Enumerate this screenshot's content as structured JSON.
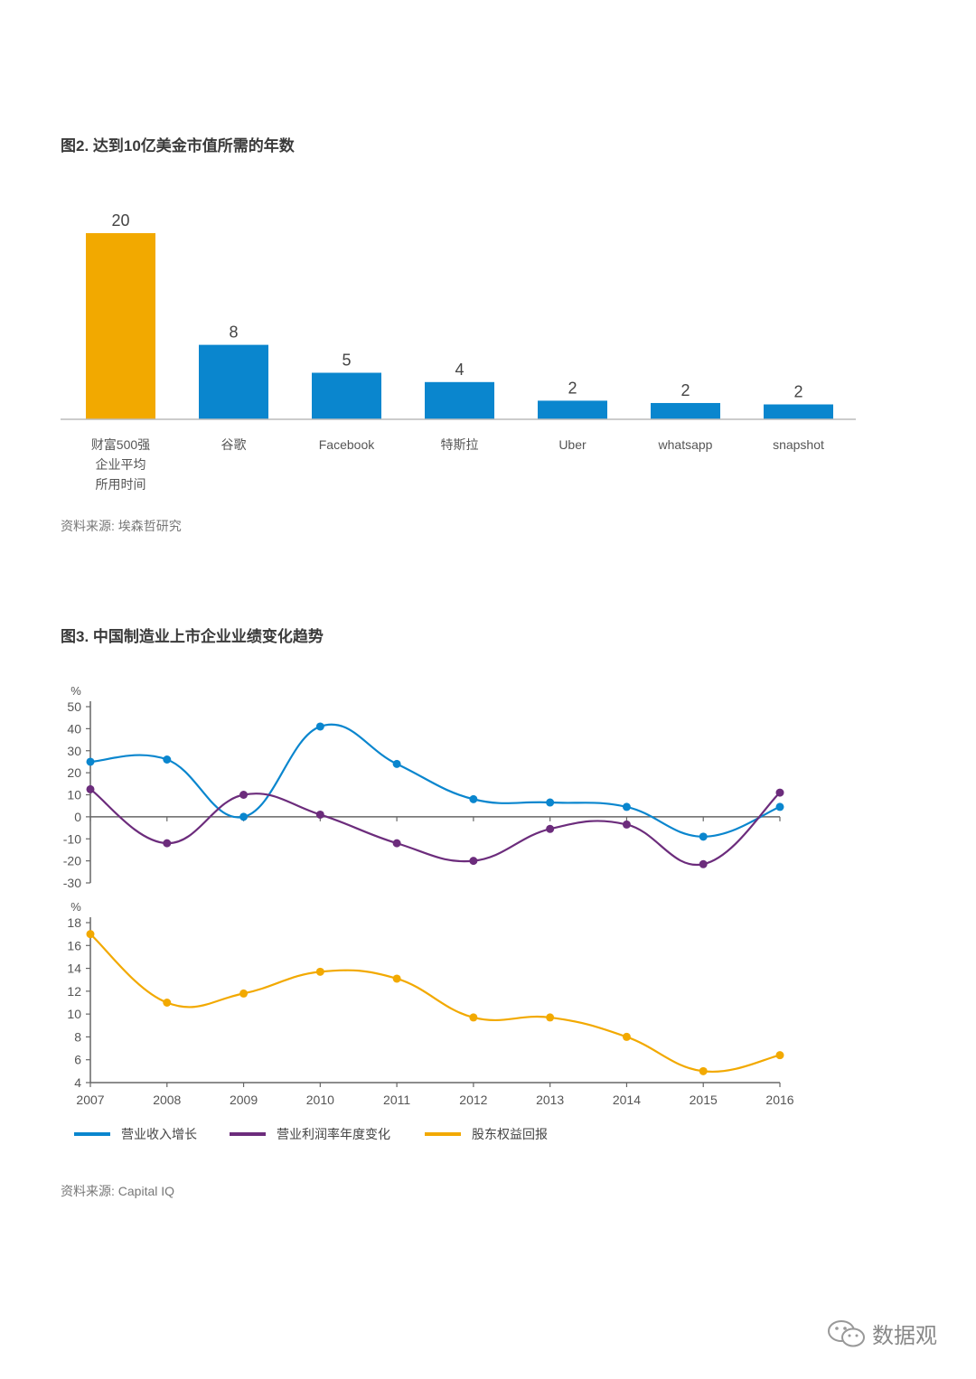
{
  "fig2": {
    "title": "图2. 达到10亿美金市值所需的年数",
    "source": "资料来源: 埃森哲研究"
  },
  "fig3": {
    "title": "图3. 中国制造业上市企业业绩变化趋势",
    "source": "资料来源: Capital IQ"
  },
  "watermark": {
    "text": "数据观",
    "icon": "wechat-icon"
  },
  "colors": {
    "orange": "#F2A900",
    "blue": "#0A86CE",
    "purple": "#6C2C7C",
    "axis": "#666666"
  },
  "chart_data": [
    {
      "type": "bar",
      "title": "图2. 达到10亿美金市值所需的年数",
      "categories": [
        [
          "财富500强",
          "企业平均",
          "所用时间"
        ],
        [
          "谷歌"
        ],
        [
          "Facebook"
        ],
        [
          "特斯拉"
        ],
        [
          "Uber"
        ],
        [
          "whatsapp"
        ],
        [
          "snapshot"
        ]
      ],
      "values": [
        20,
        8,
        5,
        4,
        2,
        2,
        2
      ],
      "bar_colors": [
        "#F2A900",
        "#0A86CE",
        "#0A86CE",
        "#0A86CE",
        "#0A86CE",
        "#0A86CE",
        "#0A86CE"
      ],
      "value_labels": [
        "20",
        "8",
        "5",
        "4",
        "2",
        "2",
        "2"
      ],
      "displayed_heights": [
        20,
        8,
        5,
        4,
        2,
        1.75,
        1.6
      ],
      "ylim": [
        0,
        20
      ],
      "grid": false
    },
    {
      "type": "line",
      "title": "图3. 中国制造业上市企业业绩变化趋势",
      "x": [
        "2007",
        "2008",
        "2009",
        "2010",
        "2011",
        "2012",
        "2013",
        "2014",
        "2015",
        "2016"
      ],
      "panels": [
        {
          "ylabel": "%",
          "ylim": [
            -30,
            50
          ],
          "yticks": [
            50,
            40,
            30,
            20,
            10,
            0,
            -10,
            -20,
            -30
          ],
          "series": [
            {
              "name": "营业收入增长",
              "color": "#0A86CE",
              "values": [
                25,
                26,
                0,
                41,
                24,
                8,
                6.5,
                4.5,
                -9,
                4.5
              ]
            },
            {
              "name": "营业利润率年度变化",
              "color": "#6C2C7C",
              "values": [
                12.5,
                -12,
                10,
                1,
                -12,
                -20,
                -5.5,
                -3.5,
                -21.5,
                11
              ]
            }
          ]
        },
        {
          "ylabel": "%",
          "ylim": [
            4,
            18
          ],
          "yticks": [
            18,
            16,
            14,
            12,
            10,
            8,
            6,
            4
          ],
          "series": [
            {
              "name": "股东权益回报",
              "color": "#F2A900",
              "values": [
                17,
                11,
                11.8,
                13.7,
                13.1,
                9.7,
                9.7,
                8,
                5,
                6.4
              ]
            }
          ]
        }
      ],
      "legend_position": "bottom-left",
      "grid": false
    }
  ]
}
